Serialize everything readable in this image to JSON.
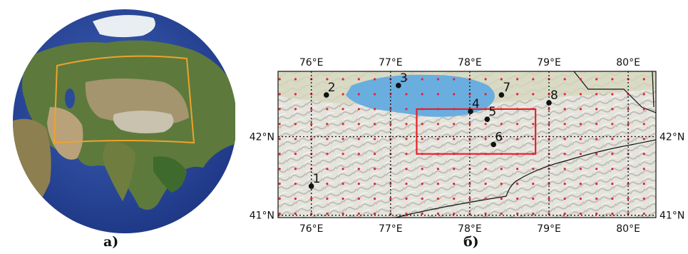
{
  "panels": [
    {
      "label": "а)"
    },
    {
      "label": "б)"
    }
  ],
  "map": {
    "lon_ticks": [
      "76°E",
      "77°E",
      "78°E",
      "79°E",
      "80°E"
    ],
    "lat_ticks": [
      "42°N",
      "41°N"
    ],
    "points": [
      {
        "label": "1",
        "lon": 76.0,
        "lat": 41.37
      },
      {
        "label": "2",
        "lon": 76.19,
        "lat": 42.53
      },
      {
        "label": "3",
        "lon": 77.1,
        "lat": 42.65
      },
      {
        "label": "4",
        "lon": 78.01,
        "lat": 42.32
      },
      {
        "label": "5",
        "lon": 78.22,
        "lat": 42.22
      },
      {
        "label": "6",
        "lon": 78.3,
        "lat": 41.9
      },
      {
        "label": "7",
        "lon": 78.4,
        "lat": 42.53
      },
      {
        "label": "8",
        "lon": 79.0,
        "lat": 42.43
      }
    ],
    "study_area": {
      "lon_min": 77.33,
      "lon_max": 78.83,
      "lat_min": 41.78,
      "lat_max": 42.35
    },
    "colors": {
      "box": "#e8202a",
      "grid_points": "#e5252a",
      "lake": "#6aaee0",
      "frame": "#f0a22a"
    }
  }
}
